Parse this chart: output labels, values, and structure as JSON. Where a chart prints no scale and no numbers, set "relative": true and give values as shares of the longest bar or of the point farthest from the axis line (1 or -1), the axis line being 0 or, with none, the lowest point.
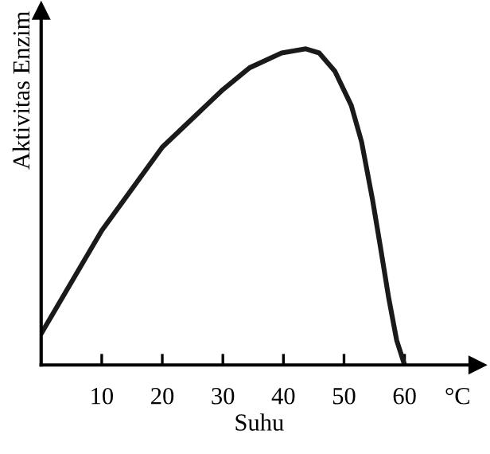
{
  "chart_data": {
    "type": "line",
    "xlabel": "Suhu",
    "ylabel": "Aktivitas Enzim",
    "relative": true,
    "color": "#1a1a1a",
    "x": [
      0,
      10,
      20,
      30,
      34.4,
      39.7,
      43.7,
      45.9,
      48.5,
      51.2,
      52.9,
      54.7,
      56,
      57.4,
      58.7,
      60
    ],
    "values": [
      0.099,
      0.425,
      0.689,
      0.871,
      0.94,
      0.987,
      1.0,
      0.987,
      0.929,
      0.821,
      0.706,
      0.524,
      0.375,
      0.21,
      0.078,
      0
    ],
    "xlim": [
      0,
      72
    ],
    "xticks": [
      10,
      20,
      30,
      40,
      50,
      60
    ],
    "annotations": [
      "°C"
    ],
    "grid": false,
    "marker": "none",
    "line_style": "solid"
  }
}
